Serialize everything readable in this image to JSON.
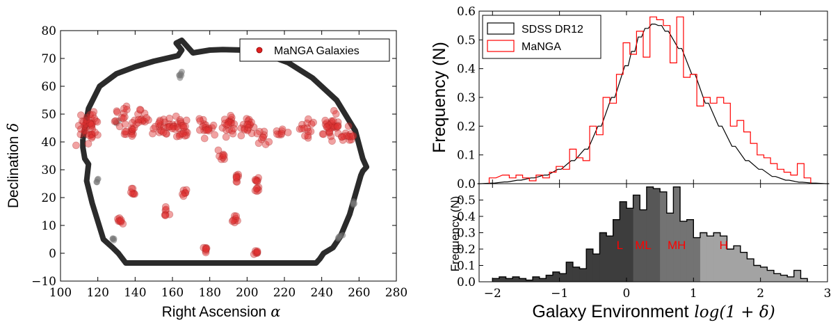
{
  "chart_data": [
    {
      "type": "scatter",
      "xlabel": "Right Ascension",
      "xlabel_symbol": "α",
      "ylabel": "Declination",
      "ylabel_symbol": "δ",
      "xlim": [
        100,
        280
      ],
      "ylim": [
        -10,
        80
      ],
      "xticks": [
        "100",
        "120",
        "140",
        "160",
        "180",
        "200",
        "220",
        "240",
        "260",
        "280"
      ],
      "yticks": [
        "−10",
        "0",
        "10",
        "20",
        "30",
        "40",
        "50",
        "60",
        "70",
        "80"
      ],
      "legend": "MaNGA Galaxies",
      "legend_position": "top-right",
      "footprint_color": "#2b2b2b",
      "galaxy_color": "#e03030",
      "footprint": [
        [
          112,
          41
        ],
        [
          115,
          52
        ],
        [
          121,
          60
        ],
        [
          130,
          64.5
        ],
        [
          140,
          67
        ],
        [
          150,
          69
        ],
        [
          163,
          71
        ],
        [
          165,
          73
        ],
        [
          162,
          75.5
        ],
        [
          165,
          76.5
        ],
        [
          171,
          72
        ],
        [
          180,
          73
        ],
        [
          187,
          73.2
        ],
        [
          198,
          73
        ],
        [
          210,
          71.5
        ],
        [
          222,
          68.5
        ],
        [
          235,
          63
        ],
        [
          248,
          55
        ],
        [
          258,
          44
        ],
        [
          262,
          34
        ],
        [
          264,
          31
        ],
        [
          262,
          29.5
        ],
        [
          261,
          28
        ],
        [
          255,
          14
        ],
        [
          250,
          6
        ],
        [
          246,
          2
        ],
        [
          241,
          0
        ],
        [
          239,
          -2
        ],
        [
          237,
          -3.5
        ],
        [
          200,
          -3.5
        ],
        [
          170,
          -3.5
        ],
        [
          152,
          -3.5
        ],
        [
          135,
          -3.5
        ],
        [
          131,
          0
        ],
        [
          128,
          2
        ],
        [
          123,
          5
        ],
        [
          117,
          18
        ],
        [
          114,
          26
        ],
        [
          115,
          32
        ],
        [
          113,
          34
        ],
        [
          112,
          38
        ],
        [
          112,
          41
        ]
      ],
      "galaxy_clusters": [
        {
          "ra": 115,
          "dec": 45,
          "n": 40,
          "spread": 4
        },
        {
          "ra": 132,
          "dec": 50,
          "n": 12,
          "spread": 3
        },
        {
          "ra": 137,
          "dec": 44,
          "n": 14,
          "spread": 2.5
        },
        {
          "ra": 143,
          "dec": 48,
          "n": 16,
          "spread": 3
        },
        {
          "ra": 153,
          "dec": 46,
          "n": 14,
          "spread": 3
        },
        {
          "ra": 158,
          "dec": 45,
          "n": 10,
          "spread": 2.5
        },
        {
          "ra": 165,
          "dec": 45,
          "n": 25,
          "spread": 3
        },
        {
          "ra": 178,
          "dec": 45,
          "n": 18,
          "spread": 3
        },
        {
          "ra": 190,
          "dec": 46,
          "n": 20,
          "spread": 3
        },
        {
          "ra": 200,
          "dec": 45,
          "n": 18,
          "spread": 3
        },
        {
          "ra": 208,
          "dec": 42,
          "n": 10,
          "spread": 3
        },
        {
          "ra": 218,
          "dec": 43,
          "n": 8,
          "spread": 2.5
        },
        {
          "ra": 233,
          "dec": 45,
          "n": 14,
          "spread": 3
        },
        {
          "ra": 245,
          "dec": 45,
          "n": 30,
          "spread": 4
        },
        {
          "ra": 253,
          "dec": 42,
          "n": 14,
          "spread": 2.5
        },
        {
          "ra": 186,
          "dec": 35,
          "n": 8,
          "spread": 2
        },
        {
          "ra": 195,
          "dec": 27,
          "n": 8,
          "spread": 1.2
        },
        {
          "ra": 205,
          "dec": 26,
          "n": 6,
          "spread": 1
        },
        {
          "ra": 205,
          "dec": 23,
          "n": 6,
          "spread": 1
        },
        {
          "ra": 139,
          "dec": 22,
          "n": 7,
          "spread": 1.2
        },
        {
          "ra": 166,
          "dec": 22,
          "n": 7,
          "spread": 1.2
        },
        {
          "ra": 157,
          "dec": 15,
          "n": 7,
          "spread": 1.2
        },
        {
          "ra": 132,
          "dec": 12,
          "n": 8,
          "spread": 1.2
        },
        {
          "ra": 193,
          "dec": 12,
          "n": 8,
          "spread": 1.2
        },
        {
          "ra": 178,
          "dec": 1.5,
          "n": 7,
          "spread": 1
        },
        {
          "ra": 205,
          "dec": 0.5,
          "n": 7,
          "spread": 1
        }
      ],
      "gray_clusters": [
        {
          "ra": 164,
          "dec": 64,
          "n": 6,
          "spread": 1
        },
        {
          "ra": 120,
          "dec": 26,
          "n": 4,
          "spread": 0.8
        },
        {
          "ra": 128,
          "dec": 5,
          "n": 4,
          "spread": 0.8
        },
        {
          "ra": 250,
          "dec": 6,
          "n": 4,
          "spread": 0.8
        },
        {
          "ra": 257,
          "dec": 18,
          "n": 4,
          "spread": 0.8
        },
        {
          "ra": 130,
          "dec": 47,
          "n": 3,
          "spread": 0.8
        }
      ]
    },
    {
      "type": "line",
      "ylabel": "Frequency (N)",
      "xlim": [
        -2.2,
        3
      ],
      "ylim": [
        0,
        0.6
      ],
      "yticks": [
        "0.0",
        "0.1",
        "0.2",
        "0.3",
        "0.4",
        "0.5",
        "0.6"
      ],
      "legend_position": "top-left",
      "series": [
        {
          "name": "SDSS DR12",
          "color": "#000000",
          "x": [
            -2.2,
            -2.0,
            -1.8,
            -1.6,
            -1.4,
            -1.2,
            -1.0,
            -0.8,
            -0.6,
            -0.4,
            -0.2,
            0.0,
            0.1,
            0.2,
            0.3,
            0.4,
            0.5,
            0.6,
            0.8,
            1.0,
            1.2,
            1.4,
            1.6,
            1.8,
            2.0,
            2.2,
            2.4,
            2.6,
            2.8,
            3.0
          ],
          "y": [
            0.0,
            0.002,
            0.006,
            0.012,
            0.02,
            0.03,
            0.05,
            0.08,
            0.12,
            0.2,
            0.3,
            0.41,
            0.46,
            0.51,
            0.54,
            0.555,
            0.55,
            0.53,
            0.47,
            0.38,
            0.28,
            0.2,
            0.13,
            0.08,
            0.05,
            0.025,
            0.012,
            0.005,
            0.002,
            0.0
          ]
        },
        {
          "name": "MaNGA",
          "color": "#ff0000",
          "x": [
            -2.0,
            -1.8,
            -1.7,
            -1.6,
            -1.5,
            -1.4,
            -1.3,
            -1.2,
            -1.1,
            -1.0,
            -0.9,
            -0.8,
            -0.7,
            -0.6,
            -0.5,
            -0.4,
            -0.3,
            -0.2,
            -0.1,
            0.0,
            0.1,
            0.2,
            0.3,
            0.4,
            0.5,
            0.6,
            0.7,
            0.8,
            0.9,
            1.0,
            1.1,
            1.2,
            1.3,
            1.4,
            1.5,
            1.6,
            1.7,
            1.8,
            1.9,
            2.0,
            2.1,
            2.2,
            2.3,
            2.4,
            2.5,
            2.6,
            2.7
          ],
          "y": [
            0.02,
            0.03,
            0.02,
            0.03,
            0.02,
            0.01,
            0.03,
            0.02,
            0.04,
            0.06,
            0.05,
            0.12,
            0.09,
            0.08,
            0.2,
            0.17,
            0.3,
            0.28,
            0.38,
            0.49,
            0.45,
            0.53,
            0.44,
            0.58,
            0.57,
            0.55,
            0.42,
            0.58,
            0.37,
            0.38,
            0.27,
            0.3,
            0.28,
            0.3,
            0.28,
            0.2,
            0.22,
            0.18,
            0.14,
            0.1,
            0.09,
            0.07,
            0.05,
            0.04,
            0.03,
            0.07,
            0.02
          ]
        }
      ]
    },
    {
      "type": "bar",
      "ylabel": "Frequency (N)",
      "xlabel": "Galaxy Environment",
      "xlabel_math": "log(1 + δ)",
      "xlim": [
        -2.2,
        3
      ],
      "ylim": [
        0,
        0.6
      ],
      "xticks": [
        "−2",
        "−1",
        "0",
        "1",
        "2",
        "3"
      ],
      "yticks": [
        "0.0",
        "0.1",
        "0.2",
        "0.3",
        "0.4",
        "0.5"
      ],
      "bin_width": 0.1,
      "bins_start": -2.0,
      "values": [
        0.02,
        0.03,
        0.02,
        0.03,
        0.02,
        0.01,
        0.03,
        0.02,
        0.04,
        0.06,
        0.05,
        0.12,
        0.09,
        0.08,
        0.2,
        0.17,
        0.3,
        0.28,
        0.38,
        0.49,
        0.45,
        0.53,
        0.44,
        0.58,
        0.57,
        0.55,
        0.42,
        0.58,
        0.37,
        0.38,
        0.27,
        0.3,
        0.28,
        0.3,
        0.28,
        0.2,
        0.22,
        0.18,
        0.14,
        0.1,
        0.09,
        0.07,
        0.05,
        0.04,
        0.03,
        0.07,
        0.02
      ],
      "regions": [
        {
          "label": "L",
          "from": -2.0,
          "to": 0.1,
          "color": "#3d3d3d"
        },
        {
          "label": "ML",
          "from": 0.1,
          "to": 0.55,
          "color": "#575757"
        },
        {
          "label": "MH",
          "from": 0.55,
          "to": 1.15,
          "color": "#737373"
        },
        {
          "label": "H",
          "from": 1.15,
          "to": 2.7,
          "color": "#a3a3a3"
        }
      ]
    }
  ]
}
